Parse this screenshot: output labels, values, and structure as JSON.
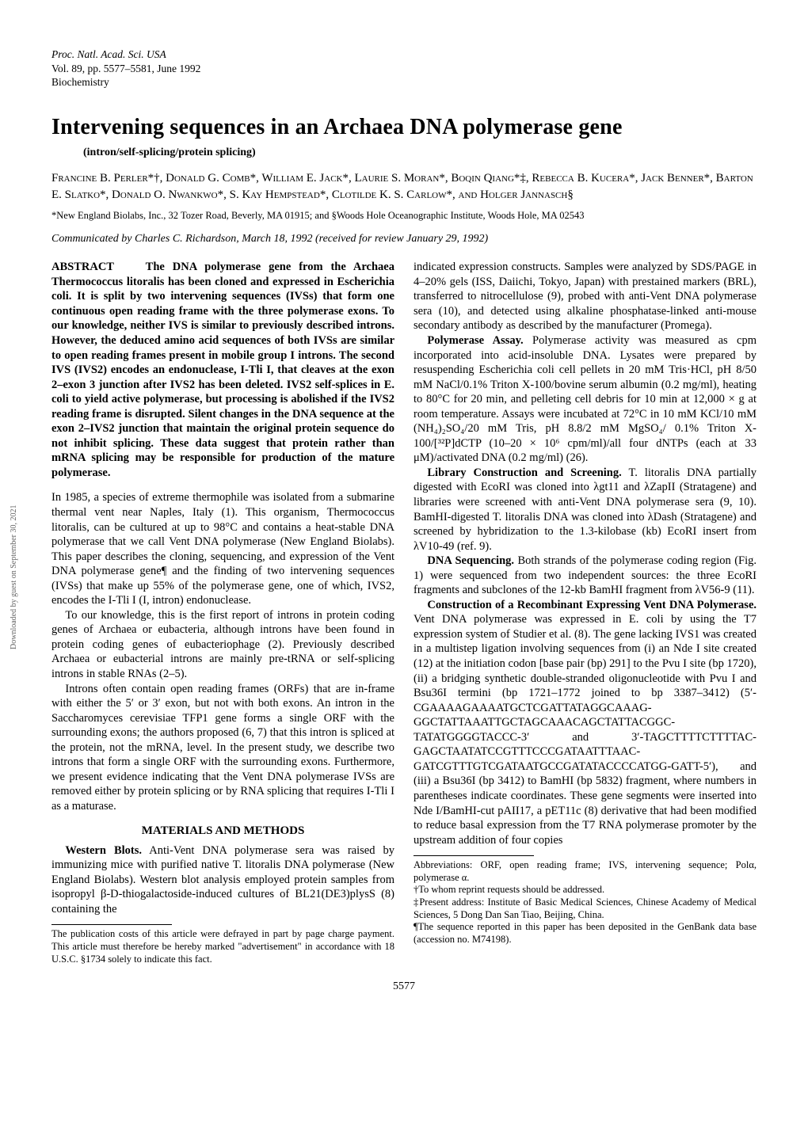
{
  "journal": {
    "line1": "Proc. Natl. Acad. Sci. USA",
    "line2": "Vol. 89, pp. 5577–5581, June 1992",
    "line3": "Biochemistry"
  },
  "title": "Intervening sequences in an Archaea DNA polymerase gene",
  "subtitle": "(intron/self-splicing/protein splicing)",
  "authors_html": "Francine B. Perler*†, Donald G. Comb*, William E. Jack*, Laurie S. Moran*, Boqin Qiang*‡, Rebecca B. Kucera*, Jack Benner*, Barton E. Slatko*, Donald O. Nwankwo*, S. Kay Hempstead*, Clotilde K. S. Carlow*, and Holger Jannasch§",
  "affil": "*New England Biolabs, Inc., 32 Tozer Road, Beverly, MA 01915; and §Woods Hole Oceanographic Institute, Woods Hole, MA 02543",
  "communicated": "Communicated by Charles C. Richardson, March 18, 1992 (received for review January 29, 1992)",
  "abstract_label": "ABSTRACT",
  "abstract_body": "The DNA polymerase gene from the Archaea Thermococcus litoralis has been cloned and expressed in Escherichia coli. It is split by two intervening sequences (IVSs) that form one continuous open reading frame with the three polymerase exons. To our knowledge, neither IVS is similar to previously described introns. However, the deduced amino acid sequences of both IVSs are similar to open reading frames present in mobile group I introns. The second IVS (IVS2) encodes an endonuclease, I-Tli I, that cleaves at the exon 2–exon 3 junction after IVS2 has been deleted. IVS2 self-splices in E. coli to yield active polymerase, but processing is abolished if the IVS2 reading frame is disrupted. Silent changes in the DNA sequence at the exon 2–IVS2 junction that maintain the original protein sequence do not inhibit splicing. These data suggest that protein rather than mRNA splicing may be responsible for production of the mature polymerase.",
  "intro_p1": "In 1985, a species of extreme thermophile was isolated from a submarine thermal vent near Naples, Italy (1). This organism, Thermococcus litoralis, can be cultured at up to 98°C and contains a heat-stable DNA polymerase that we call Vent DNA polymerase (New England Biolabs). This paper describes the cloning, sequencing, and expression of the Vent DNA polymerase gene¶ and the finding of two intervening sequences (IVSs) that make up 55% of the polymerase gene, one of which, IVS2, encodes the I-Tli I (I, intron) endonuclease.",
  "intro_p2": "To our knowledge, this is the first report of introns in protein coding genes of Archaea or eubacteria, although introns have been found in protein coding genes of eubacteriophage (2). Previously described Archaea or eubacterial introns are mainly pre-tRNA or self-splicing introns in stable RNAs (2–5).",
  "intro_p3": "Introns often contain open reading frames (ORFs) that are in-frame with either the 5′ or 3′ exon, but not with both exons. An intron in the Saccharomyces cerevisiae TFP1 gene forms a single ORF with the surrounding exons; the authors proposed (6, 7) that this intron is spliced at the protein, not the mRNA, level. In the present study, we describe two introns that form a single ORF with the surrounding exons. Furthermore, we present evidence indicating that the Vent DNA polymerase IVSs are removed either by protein splicing or by RNA splicing that requires I-Tli I as a maturase.",
  "methods_head": "MATERIALS AND METHODS",
  "western_head": "Western Blots.",
  "western_body": " Anti-Vent DNA polymerase sera was raised by immunizing mice with purified native T. litoralis DNA polymerase (New England Biolabs). Western blot analysis employed protein samples from isopropyl β-D-thiogalactoside-induced cultures of BL21(DE3)plysS (8) containing the",
  "left_footnote": "The publication costs of this article were defrayed in part by page charge payment. This article must therefore be hereby marked \"advertisement\" in accordance with 18 U.S.C. §1734 solely to indicate this fact.",
  "col2_p1": "indicated expression constructs. Samples were analyzed by SDS/PAGE in 4–20% gels (ISS, Daiichi, Tokyo, Japan) with prestained markers (BRL), transferred to nitrocellulose (9), probed with anti-Vent DNA polymerase sera (10), and detected using alkaline phosphatase-linked anti-mouse secondary antibody as described by the manufacturer (Promega).",
  "polassay_head": "Polymerase Assay.",
  "polassay_body": " Polymerase activity was measured as cpm incorporated into acid-insoluble DNA. Lysates were prepared by resuspending Escherichia coli cell pellets in 20 mM Tris·HCl, pH 8/50 mM NaCl/0.1% Triton X-100/bovine serum albumin (0.2 mg/ml), heating to 80°C for 20 min, and pelleting cell debris for 10 min at 12,000 × g at room temperature. Assays were incubated at 72°C in 10 mM KCl/10 mM (NH₄)₂SO₄/20 mM Tris, pH 8.8/2 mM MgSO₄/ 0.1% Triton X-100/[³²P]dCTP (10–20 × 10⁶ cpm/ml)/all four dNTPs (each at 33 μM)/activated DNA (0.2 mg/ml) (26).",
  "library_head": "Library Construction and Screening.",
  "library_body": " T. litoralis DNA partially digested with EcoRI was cloned into λgt11 and λZapII (Stratagene) and libraries were screened with anti-Vent DNA polymerase sera (9, 10). BamHI-digested T. litoralis DNA was cloned into λDash (Stratagene) and screened by hybridization to the 1.3-kilobase (kb) EcoRI insert from λV10-49 (ref. 9).",
  "dnaseq_head": "DNA Sequencing.",
  "dnaseq_body": " Both strands of the polymerase coding region (Fig. 1) were sequenced from two independent sources: the three EcoRI fragments and subclones of the 12-kb BamHI fragment from λV56-9 (11).",
  "construct_head": "Construction of a Recombinant Expressing Vent DNA Polymerase.",
  "construct_body": " Vent DNA polymerase was expressed in E. coli by using the T7 expression system of Studier et al. (8). The gene lacking IVS1 was created in a multistep ligation involving sequences from (i) an Nde I site created (12) at the initiation codon [base pair (bp) 291] to the Pvu I site (bp 1720), (ii) a bridging synthetic double-stranded oligonucleotide with Pvu I and Bsu36I termini (bp 1721–1772 joined to bp 3387–3412) (5′-CGAAAAGAAAATGCTCGATTATAGGCAAAG-GGCTATTAAATTGCTAGCAAACAGCTATTACGGC-TATATGGGGTACCC-3′ and 3′-TAGCTTTTCTTTTAC-GAGCTAATATCCGTTTCCCGATAATTTAAC-GATCGTTTGTCGATAATGCCGATATACCCCATGG-GATT-5′), and (iii) a Bsu36I (bp 3412) to BamHI (bp 5832) fragment, where numbers in parentheses indicate coordinates. These gene segments were inserted into Nde I/BamHI-cut pAII17, a pET11c (8) derivative that had been modified to reduce basal expression from the T7 RNA polymerase promoter by the upstream addition of four copies",
  "right_footnotes": {
    "abbrev": "Abbreviations: ORF, open reading frame; IVS, intervening sequence; Polα, polymerase α.",
    "dagger": "†To whom reprint requests should be addressed.",
    "ddagger": "‡Present address: Institute of Basic Medical Sciences, Chinese Academy of Medical Sciences, 5 Dong Dan San Tiao, Beijing, China.",
    "para": "¶The sequence reported in this paper has been deposited in the GenBank data base (accession no. M74198)."
  },
  "page_number": "5577",
  "side_note": "Downloaded by guest on September 30, 2021"
}
